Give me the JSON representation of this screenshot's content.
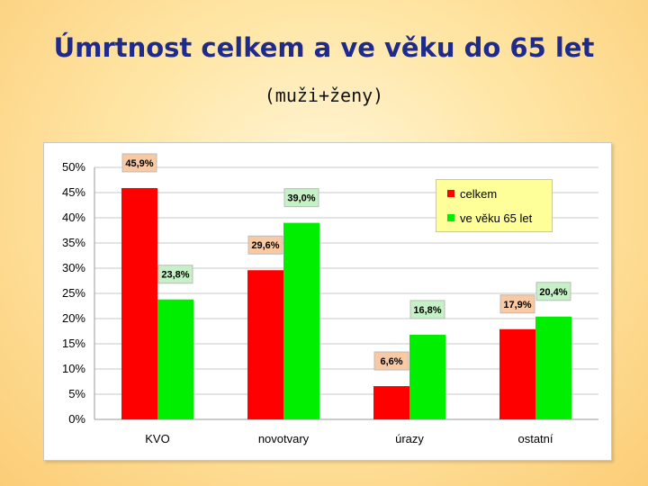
{
  "page": {
    "title": "Úmrtnost celkem a ve věku do 65 let",
    "subtitle": "(muži+ženy)"
  },
  "chart_data": {
    "type": "bar",
    "categories": [
      "KVO",
      "novotvary",
      "úrazy",
      "ostatní"
    ],
    "series": [
      {
        "name": "celkem",
        "color": "#ff0000",
        "values": [
          45.9,
          29.6,
          6.6,
          17.9
        ],
        "labels": [
          "45,9%",
          "29,6%",
          "6,6%",
          "17,9%"
        ],
        "label_bg": "#f8c9a2"
      },
      {
        "name": "ve věku 65 let",
        "color": "#00ee00",
        "values": [
          23.8,
          39.0,
          16.8,
          20.4
        ],
        "labels": [
          "23,8%",
          "39,0%",
          "16,8%",
          "20,4%"
        ],
        "label_bg": "#c6f0c6"
      }
    ],
    "ylim": [
      0,
      50
    ],
    "yticks": [
      "0%",
      "5%",
      "10%",
      "15%",
      "20%",
      "25%",
      "30%",
      "35%",
      "40%",
      "45%",
      "50%"
    ],
    "grid": true,
    "legend_position": "top-right"
  }
}
